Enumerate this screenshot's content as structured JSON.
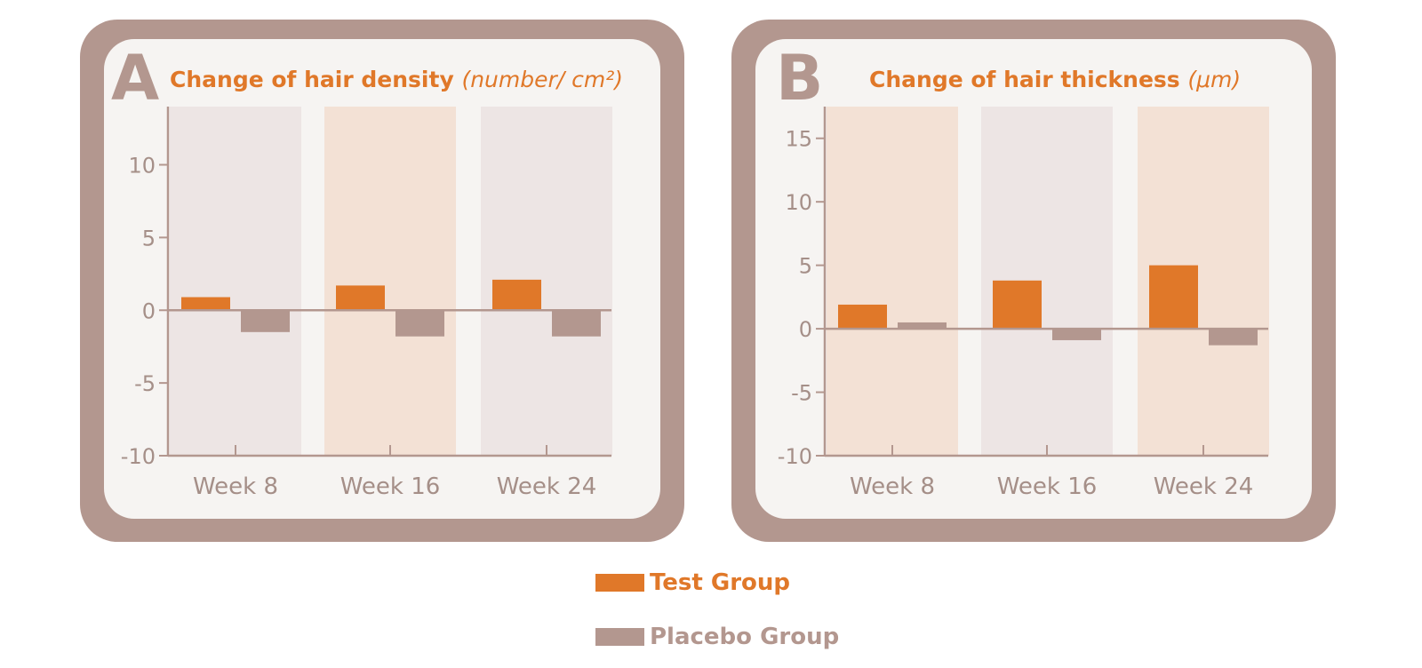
{
  "colors": {
    "test": "#E07829",
    "placebo": "#B3978F",
    "frame": "#B3978F",
    "panel_bg": "#F6F4F2",
    "band_orange": "#F3E1D5",
    "band_mauve": "#EDE5E4",
    "axis_text": "#A58F88",
    "title_orange": "#E07829"
  },
  "legend": {
    "test_label": "Test Group",
    "placebo_label": "Placebo Group"
  },
  "chart_data": [
    {
      "type": "bar",
      "panel_label": "A",
      "title": "Change of hair density",
      "title_unit": "(number/ cm²)",
      "categories": [
        "Week 8",
        "Week 16",
        "Week 24"
      ],
      "series": [
        {
          "name": "Test Group",
          "values": [
            0.9,
            1.7,
            2.1
          ]
        },
        {
          "name": "Placebo Group",
          "values": [
            -1.5,
            -1.8,
            -1.8
          ]
        }
      ],
      "ylim": [
        -10,
        14
      ],
      "yticks": [
        -10,
        -5,
        0,
        5,
        10
      ],
      "ytick_labels": [
        "-10",
        "-5",
        "0",
        "5",
        "10"
      ],
      "band_colors": [
        "mauve",
        "orange",
        "mauve"
      ]
    },
    {
      "type": "bar",
      "panel_label": "B",
      "title": "Change of hair thickness",
      "title_unit": "(μm)",
      "categories": [
        "Week 8",
        "Week 16",
        "Week 24"
      ],
      "series": [
        {
          "name": "Test Group",
          "values": [
            1.9,
            3.8,
            5.0
          ]
        },
        {
          "name": "Placebo Group",
          "values": [
            0.5,
            -0.9,
            -1.3
          ]
        }
      ],
      "ylim": [
        -10,
        17.5
      ],
      "yticks": [
        -10,
        -5,
        0,
        5,
        10,
        15
      ],
      "ytick_labels": [
        "-10",
        "-5",
        "0",
        "5",
        "10",
        "15"
      ],
      "band_colors": [
        "orange",
        "mauve",
        "orange"
      ]
    }
  ]
}
